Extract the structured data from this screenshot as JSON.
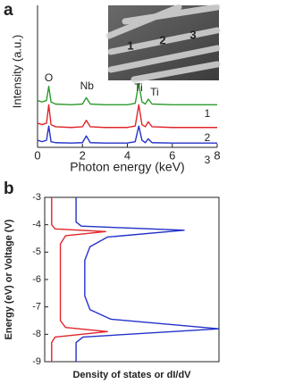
{
  "chart_data": [
    {
      "type": "line",
      "panel_label": "a",
      "xlabel": "Photon energy (keV)",
      "ylabel": "Intensity (a.u.)",
      "xlim": [
        0,
        8
      ],
      "xticks": [
        0,
        2,
        4,
        6,
        8
      ],
      "ylim": [
        0,
        10
      ],
      "x": [
        0,
        0.2,
        0.4,
        0.5,
        0.6,
        0.8,
        1.5,
        2.0,
        2.17,
        2.35,
        3,
        4,
        4.35,
        4.51,
        4.65,
        4.8,
        4.93,
        5.1,
        6,
        7,
        8
      ],
      "series": [
        {
          "name": "1",
          "color": "#2e9a2e",
          "values": [
            3.3,
            3.2,
            3.3,
            4.3,
            3.2,
            3.05,
            3.0,
            3.05,
            3.5,
            3.05,
            3.0,
            3.0,
            3.1,
            4.5,
            3.2,
            3.05,
            3.4,
            3.05,
            3.0,
            3.0,
            3.0
          ]
        },
        {
          "name": "2",
          "color": "#e0262b",
          "values": [
            1.7,
            1.6,
            1.7,
            3.0,
            1.6,
            1.45,
            1.4,
            1.45,
            1.9,
            1.45,
            1.4,
            1.4,
            1.5,
            3.0,
            1.6,
            1.45,
            1.8,
            1.45,
            1.4,
            1.4,
            1.4
          ]
        },
        {
          "name": "3",
          "color": "#2432c8",
          "values": [
            0.5,
            0.4,
            0.5,
            1.5,
            0.4,
            0.33,
            0.3,
            0.33,
            0.8,
            0.33,
            0.3,
            0.3,
            0.4,
            1.5,
            0.5,
            0.33,
            0.6,
            0.33,
            0.3,
            0.3,
            0.3
          ]
        }
      ],
      "annotations": [
        "O",
        "Nb",
        "Ti",
        "Ti"
      ]
    },
    {
      "type": "line",
      "panel_label": "b",
      "xlabel": "Density of states or dI/dV",
      "ylabel": "Energy (eV) or Voltage (V)",
      "xlim": [
        0,
        10
      ],
      "ylim": [
        -9,
        -3
      ],
      "yticks": [
        -3,
        -4,
        -5,
        -6,
        -7,
        -8,
        -9
      ],
      "series": [
        {
          "color": "#e0262b",
          "x": [
            0.4,
            0.4,
            0.6,
            3.5,
            1.2,
            0.9,
            0.9,
            0.9,
            1.2,
            3.6,
            0.6,
            0.4,
            0.4
          ],
          "values": [
            -3,
            -4.0,
            -4.15,
            -4.25,
            -4.4,
            -4.7,
            -6.0,
            -7.5,
            -7.75,
            -7.9,
            -8.1,
            -8.3,
            -9
          ]
        },
        {
          "color": "#2432c8",
          "x": [
            1.8,
            1.8,
            2.1,
            8.0,
            3.6,
            2.6,
            2.3,
            2.3,
            2.6,
            3.8,
            10.0,
            2.2,
            1.8,
            1.8
          ],
          "values": [
            -3,
            -3.9,
            -4.05,
            -4.2,
            -4.45,
            -4.8,
            -5.3,
            -6.6,
            -7.1,
            -7.45,
            -7.8,
            -8.1,
            -8.3,
            -9
          ]
        }
      ]
    }
  ]
}
